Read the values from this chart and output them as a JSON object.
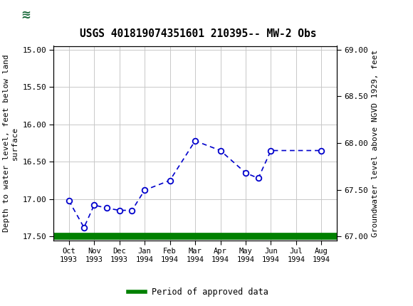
{
  "title": "USGS 401819074351601 210395-- MW-2 Obs",
  "header_bg": "#1a6b3c",
  "left_ylabel": "Depth to water level, feet below land\nsurface",
  "right_ylabel": "Groundwater level above NGVD 1929, feet",
  "yticks_left": [
    15.0,
    15.5,
    16.0,
    16.5,
    17.0,
    17.5
  ],
  "yticks_right": [
    67.0,
    67.5,
    68.0,
    68.5,
    69.0
  ],
  "x_labels": [
    "Oct\n1993",
    "Nov\n1993",
    "Dec\n1993",
    "Jan\n1994",
    "Feb\n1994",
    "Mar\n1994",
    "Apr\n1994",
    "May\n1994",
    "Jun\n1994",
    "Jul\n1994",
    "Aug\n1994"
  ],
  "x_positions": [
    0,
    1,
    2,
    3,
    4,
    5,
    6,
    7,
    8,
    9,
    10
  ],
  "data_x": [
    0.0,
    0.6,
    1.0,
    1.5,
    2.0,
    2.5,
    3.0,
    4.0,
    5.0,
    6.0,
    7.0,
    7.5,
    8.0,
    10.0
  ],
  "data_y_depth": [
    17.02,
    17.38,
    17.08,
    17.12,
    17.15,
    17.15,
    16.88,
    16.75,
    16.22,
    16.35,
    16.65,
    16.72,
    16.35,
    16.35
  ],
  "line_color": "#0000cc",
  "marker_face": "#ffffff",
  "legend_label": "Period of approved data",
  "legend_color": "#008000",
  "bg_color": "#ffffff",
  "grid_color": "#c8c8c8",
  "font_family": "DejaVu Sans Mono"
}
